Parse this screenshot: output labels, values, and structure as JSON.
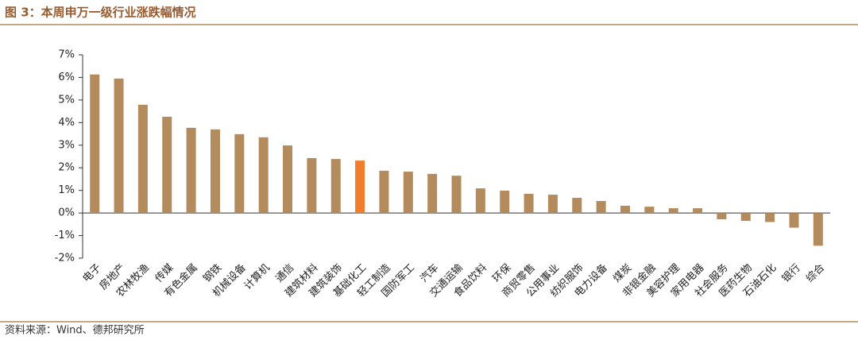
{
  "chart_data": {
    "type": "bar",
    "title": "图 3：本周申万一级行业涨跌幅情况",
    "source": "资料来源：Wind、德邦研究所",
    "categories": [
      "电子",
      "房地产",
      "农林牧渔",
      "传媒",
      "有色金属",
      "钢铁",
      "机械设备",
      "计算机",
      "通信",
      "建筑材料",
      "建筑装饰",
      "基础化工",
      "轻工制造",
      "国防军工",
      "汽车",
      "交通运输",
      "食品饮料",
      "环保",
      "商贸零售",
      "公用事业",
      "纺织服饰",
      "电力设备",
      "煤炭",
      "非银金融",
      "美容护理",
      "家用电器",
      "社会服务",
      "医药生物",
      "石油石化",
      "银行",
      "综合"
    ],
    "values": [
      6.13,
      5.95,
      4.79,
      4.26,
      3.77,
      3.7,
      3.49,
      3.35,
      2.99,
      2.43,
      2.39,
      2.32,
      1.87,
      1.83,
      1.73,
      1.65,
      1.09,
      0.99,
      0.85,
      0.81,
      0.67,
      0.53,
      0.32,
      0.28,
      0.21,
      0.21,
      -0.28,
      -0.35,
      -0.4,
      -0.65,
      -1.45
    ],
    "colors": [
      "#b38b5d",
      "#b38b5d",
      "#b38b5d",
      "#b38b5d",
      "#b38b5d",
      "#b38b5d",
      "#b38b5d",
      "#b38b5d",
      "#b38b5d",
      "#b38b5d",
      "#b38b5d",
      "#f07d2b",
      "#b38b5d",
      "#b38b5d",
      "#b38b5d",
      "#b38b5d",
      "#b38b5d",
      "#b38b5d",
      "#b38b5d",
      "#b38b5d",
      "#b38b5d",
      "#b38b5d",
      "#b38b5d",
      "#b38b5d",
      "#b38b5d",
      "#b38b5d",
      "#b38b5d",
      "#b38b5d",
      "#b38b5d",
      "#b38b5d",
      "#b38b5d"
    ],
    "ylim": [
      -2,
      7
    ],
    "yticks": [
      {
        "value": -2,
        "label": "-2%"
      },
      {
        "value": -1,
        "label": "-1%"
      },
      {
        "value": 0,
        "label": "0%"
      },
      {
        "value": 1,
        "label": "1%"
      },
      {
        "value": 2,
        "label": "2%"
      },
      {
        "value": 3,
        "label": "3%"
      },
      {
        "value": 4,
        "label": "4%"
      },
      {
        "value": 5,
        "label": "5%"
      },
      {
        "value": 6,
        "label": "6%"
      },
      {
        "value": 7,
        "label": "7%"
      }
    ]
  }
}
